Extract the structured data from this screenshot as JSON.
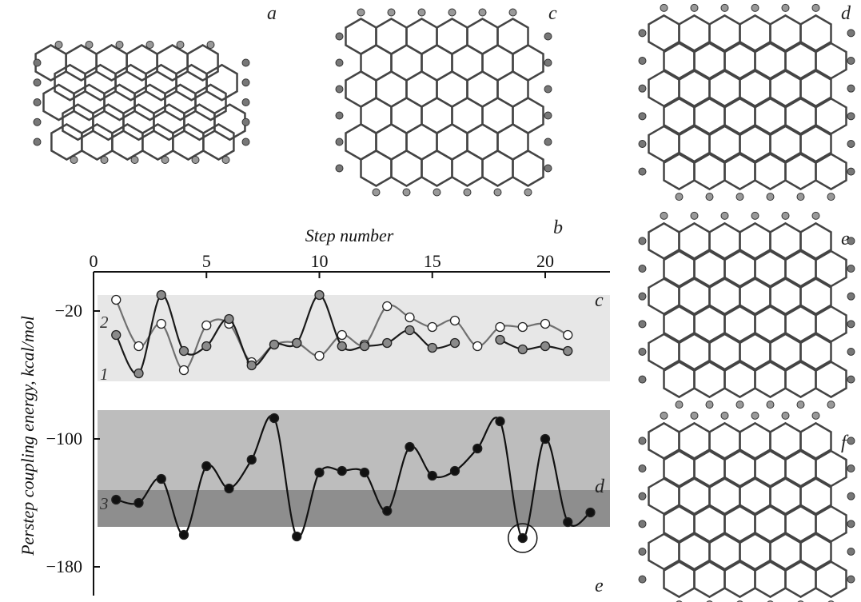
{
  "panel_labels": {
    "a": "a",
    "b": "b",
    "c": "c",
    "d": "d",
    "e": "e",
    "f": "f"
  },
  "chart_data": {
    "type": "line",
    "title": "",
    "xlabel": "Step number",
    "ylabel": "Perstep coupling energy, kcal/mol",
    "xlim": [
      0,
      22.5
    ],
    "ylim": [
      -180,
      0
    ],
    "x_ticks": [
      0,
      5,
      10,
      15,
      20
    ],
    "y_ticks": [
      -20,
      -100,
      -180
    ],
    "x_axis_position": "top",
    "bands": [
      {
        "label": "c",
        "y_range": [
          -64,
          -10
        ],
        "color": "#e7e7e7"
      },
      {
        "label": "d",
        "y_range": [
          -155,
          -82
        ],
        "color": "#bdbdbd"
      },
      {
        "label": "e",
        "y_range": [
          -155,
          -132
        ],
        "color": "#8e8e8e"
      }
    ],
    "series": [
      {
        "name": "1",
        "color": "#1a1a1a",
        "marker_fill": "#8a8a8a",
        "x": [
          1,
          2,
          3,
          4,
          5,
          6,
          7,
          8,
          9,
          10,
          11,
          12,
          13,
          14,
          15,
          16,
          18,
          19,
          20,
          21
        ],
        "y": [
          -35,
          -59,
          -10,
          -45,
          -42,
          -25,
          -54,
          -41,
          -40,
          -10,
          -42,
          -42,
          -40,
          -32,
          -43,
          -40,
          -38,
          -44,
          -42,
          -45
        ]
      },
      {
        "name": "2",
        "color": "#707070",
        "marker_fill": "#ffffff",
        "x": [
          1,
          2,
          3,
          4,
          5,
          6,
          7,
          8,
          9,
          10,
          11,
          12,
          13,
          14,
          15,
          16,
          17,
          18,
          19,
          20,
          21
        ],
        "y": [
          -13,
          -42,
          -28,
          -57,
          -29,
          -28,
          -52,
          -41,
          -40,
          -48,
          -35,
          -41,
          -17,
          -24,
          -30,
          -26,
          -42,
          -30,
          -30,
          -28,
          -35
        ]
      },
      {
        "name": "3",
        "color": "#111111",
        "marker_fill": "#111111",
        "x": [
          1,
          2,
          3,
          4,
          5,
          6,
          7,
          8,
          9,
          10,
          11,
          12,
          13,
          14,
          15,
          16,
          17,
          18,
          19,
          20,
          21,
          22
        ],
        "y": [
          -138,
          -140,
          -125,
          -160,
          -117,
          -131,
          -113,
          -87,
          -161,
          -121,
          -120,
          -121,
          -145,
          -105,
          -123,
          -120,
          -106,
          -89,
          -162,
          -100,
          -152,
          -146
        ]
      }
    ],
    "highlight": {
      "series": "3",
      "x": 19,
      "y": -162,
      "style": "circle"
    }
  }
}
